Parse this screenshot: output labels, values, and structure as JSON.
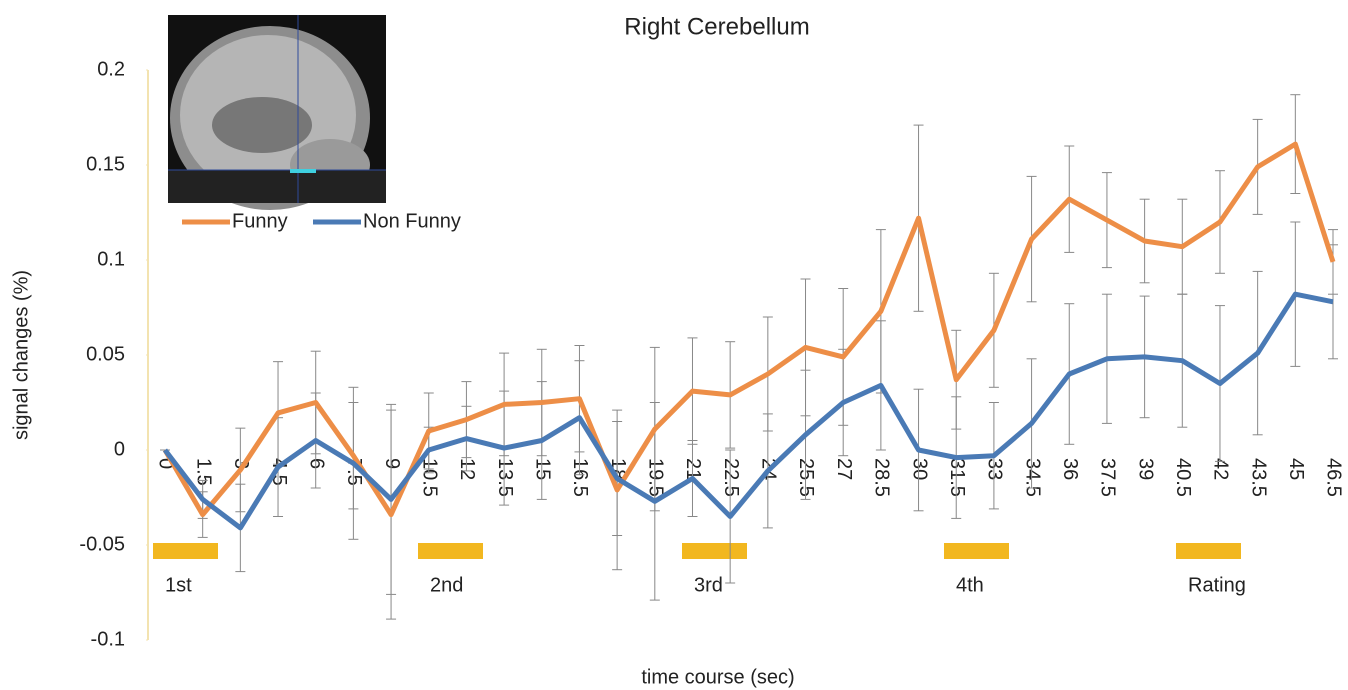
{
  "chart_data": {
    "type": "line",
    "title": "Right Cerebellum",
    "x_label": "time course (sec)",
    "y_label": "signal changes (%)",
    "categories": [
      "0",
      "1.5",
      "3",
      "4.5",
      "6",
      "7.5",
      "9",
      "10.5",
      "12",
      "13.5",
      "15",
      "16.5",
      "18",
      "19.5",
      "21",
      "22.5",
      "24",
      "25.5",
      "27",
      "28.5",
      "30",
      "31.5",
      "33",
      "34.5",
      "36",
      "37.5",
      "39",
      "40.5",
      "42",
      "43.5",
      "45",
      "46.5"
    ],
    "series": [
      {
        "name": "Funny",
        "color": "#ed8e47",
        "values": [
          0,
          -0.034,
          -0.0105,
          0.0195,
          0.025,
          -0.003,
          -0.034,
          0.01,
          0.016,
          0.024,
          0.025,
          0.027,
          -0.021,
          0.011,
          0.031,
          0.029,
          0.04,
          0.054,
          0.049,
          0.073,
          0.122,
          0.037,
          0.063,
          0.111,
          0.132,
          0.121,
          0.11,
          0.107,
          0.12,
          0.149,
          0.161,
          0.099
        ],
        "errors": [
          0,
          0.012,
          0.022,
          0.027,
          0.027,
          0.028,
          0.055,
          0.02,
          0.02,
          0.027,
          0.028,
          0.028,
          0.042,
          0.043,
          0.028,
          0.028,
          0.03,
          0.036,
          0.036,
          0.043,
          0.049,
          0.026,
          0.03,
          0.033,
          0.028,
          0.025,
          0.022,
          0.025,
          0.027,
          0.025,
          0.026,
          0.017
        ]
      },
      {
        "name": "Non Funny",
        "color": "#4a7ab5",
        "values": [
          0,
          -0.026,
          -0.041,
          -0.009,
          0.005,
          -0.007,
          -0.026,
          0,
          0.006,
          0.001,
          0.005,
          0.017,
          -0.015,
          -0.027,
          -0.015,
          -0.035,
          -0.011,
          0.008,
          0.025,
          0.034,
          0,
          -0.004,
          -0.003,
          0.014,
          0.04,
          0.048,
          0.049,
          0.047,
          0.035,
          0.051,
          0.082,
          0.078
        ],
        "errors": [
          0,
          0.01,
          0.023,
          0.026,
          0.025,
          0.04,
          0.05,
          0.012,
          0.017,
          0.03,
          0.031,
          0.03,
          0.03,
          0.052,
          0.02,
          0.035,
          0.03,
          0.034,
          0.028,
          0.034,
          0.032,
          0.032,
          0.028,
          0.034,
          0.037,
          0.034,
          0.032,
          0.035,
          0.041,
          0.043,
          0.038,
          0.03
        ]
      }
    ],
    "ylim": [
      -0.1,
      0.2
    ],
    "yticks": [
      -0.1,
      -0.05,
      0,
      0.05,
      0.1,
      0.15,
      0.2
    ],
    "annotations": [
      "1st",
      "2nd",
      "3rd",
      "4th",
      "Rating"
    ],
    "annotation_color": "#f2b71f"
  }
}
